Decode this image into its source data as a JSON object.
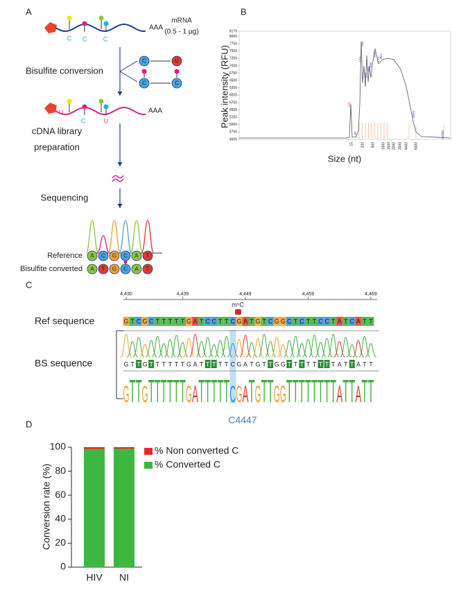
{
  "panel_labels": [
    "A",
    "B",
    "C",
    "D"
  ],
  "panel_a": {
    "mrna": "mRNA",
    "amount": "(0.5 - 1 µg)",
    "poly_a": "AAA",
    "cytosine": "C",
    "uracil": "U",
    "steps": [
      "Bisulfite conversion",
      "cDNA library",
      "preparation",
      "Sequencing"
    ],
    "reference_label": "Reference",
    "converted_label": "Bisulfite converted",
    "reference_bases": [
      "A",
      "C",
      "G",
      "C",
      "A",
      "T"
    ],
    "converted_bases": [
      "A",
      "T",
      "G",
      "C",
      "A",
      "T"
    ]
  },
  "panel_c": {
    "ref_label": "Ref sequence",
    "bs_label": "BS sequence",
    "modification": "m⁵C",
    "ruler": [
      {
        "value": 4430,
        "label": "4,430"
      },
      {
        "value": 4439,
        "label": "4,439"
      },
      {
        "value": 4449,
        "label": "4,449"
      },
      {
        "value": 4459,
        "label": "4,459"
      },
      {
        "value": 4469,
        "label": "4,469"
      }
    ],
    "ref_sequence": [
      "G",
      "T",
      "C",
      "G",
      "C",
      "T",
      "T",
      "T",
      "T",
      "T",
      "G",
      "A",
      "T",
      "C",
      "C",
      "T",
      "T",
      "C",
      "G",
      "A",
      "T",
      "G",
      "T",
      "C",
      "G",
      "G",
      "C",
      "T",
      "C",
      "T",
      "T",
      "C",
      "C",
      "T",
      "A",
      "T",
      "C",
      "A",
      "T",
      "T"
    ],
    "bs_sequence": [
      "G",
      "T",
      "T",
      "G",
      "T",
      "T",
      "T",
      "T",
      "T",
      "T",
      "G",
      "A",
      "T",
      "T",
      "T",
      "T",
      "T",
      "C",
      "G",
      "A",
      "T",
      "G",
      "T",
      "T",
      "G",
      "G",
      "T",
      "T",
      "T",
      "T",
      "T",
      "T",
      "T",
      "T",
      "A",
      "T",
      "T",
      "A",
      "T",
      "T"
    ]
  },
  "chart_data": [
    {
      "type": "electropherogram",
      "y_label": "Peak intensity (RFU)",
      "x_label": "Size (nt)",
      "ylim": [
        4500,
        8179
      ],
      "yticks": [
        4500,
        4750,
        5000,
        5250,
        5500,
        5750,
        6000,
        6250,
        6500,
        6750,
        7000,
        7250,
        7500,
        7750,
        8000,
        8179
      ],
      "x_tick_labels": [
        "15",
        "200",
        "500",
        "1000",
        "1500",
        "2000",
        "3000",
        "4000",
        "6000"
      ],
      "peak_labels": [
        "LM",
        "90",
        "173",
        "188",
        "262",
        "305",
        "448",
        "533",
        "775",
        "984",
        "4635",
        "10380"
      ]
    },
    {
      "type": "bar",
      "stacked": true,
      "title": "C4447",
      "y_label": "Conversion rate (%)",
      "categories": [
        "HIV",
        "NI"
      ],
      "series": [
        {
          "name": "% Non converted C",
          "color": "#e8262c",
          "values": [
            1.5,
            1.2
          ]
        },
        {
          "name": "% Converted C",
          "color": "#3fb63f",
          "values": [
            98.5,
            98.8
          ]
        }
      ],
      "ylim": [
        0,
        100
      ],
      "yticks": [
        0,
        20,
        40,
        60,
        80,
        100
      ]
    }
  ]
}
